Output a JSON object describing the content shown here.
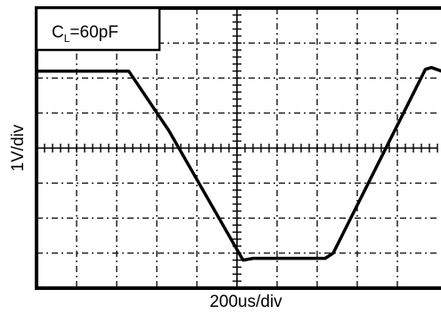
{
  "chart_data": {
    "type": "line",
    "legend_label": "C",
    "legend_sub": "L",
    "legend_value": "=60pF",
    "xlabel": "200us/div",
    "ylabel": "1V/div",
    "x_divisions": 10,
    "y_divisions": 8,
    "grid": true,
    "series": [
      {
        "x": [
          0,
          2.3,
          3.3,
          5.15,
          5.4,
          7.2,
          7.4,
          9.7,
          9.85,
          10.1
        ],
        "y": [
          6.2,
          6.2,
          4.5,
          0.8,
          0.85,
          0.85,
          1.0,
          6.25,
          6.3,
          6.2
        ]
      }
    ]
  }
}
